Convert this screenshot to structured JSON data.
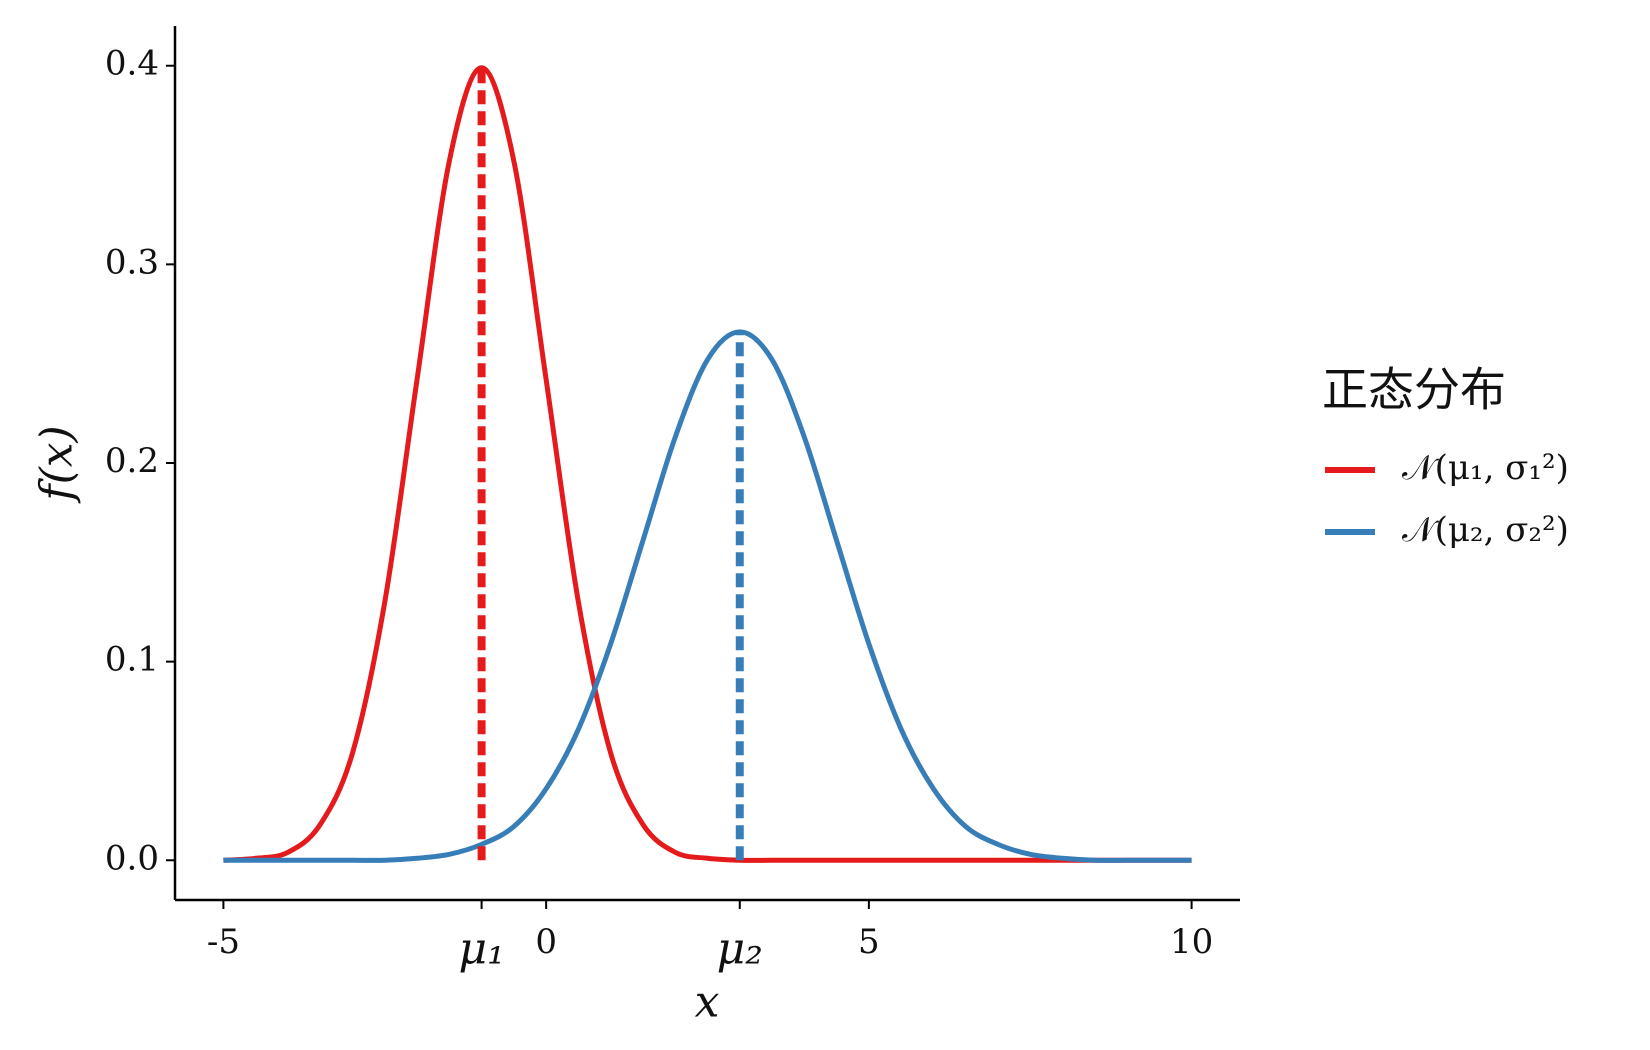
{
  "chart_data": {
    "type": "line",
    "x": [
      -5,
      -4.5,
      -4,
      -3.5,
      -3,
      -2.5,
      -2,
      -1.5,
      -1,
      -0.5,
      0,
      0.5,
      1,
      1.5,
      2,
      2.5,
      3,
      3.5,
      4,
      4.5,
      5,
      5.5,
      6,
      6.5,
      7,
      7.5,
      8,
      8.5,
      9,
      9.5,
      10
    ],
    "series": [
      {
        "name": "𝒩(μ₁, σ₁²)",
        "color": "#e41a1c",
        "values": [
          0,
          0.001,
          0.004,
          0.018,
          0.054,
          0.13,
          0.242,
          0.352,
          0.399,
          0.352,
          0.242,
          0.13,
          0.054,
          0.018,
          0.004,
          0.001,
          0,
          0,
          0,
          0,
          0,
          0,
          0,
          0,
          0,
          0,
          0,
          0,
          0,
          0,
          0
        ]
      },
      {
        "name": "𝒩(μ₂, σ₂²)",
        "color": "#377eb8",
        "values": [
          0,
          0,
          0,
          0,
          0,
          0,
          0.001,
          0.003,
          0.008,
          0.017,
          0.036,
          0.066,
          0.109,
          0.161,
          0.213,
          0.252,
          0.266,
          0.252,
          0.213,
          0.161,
          0.109,
          0.066,
          0.036,
          0.017,
          0.008,
          0.003,
          0.001,
          0,
          0,
          0,
          0
        ]
      }
    ],
    "vlines": [
      {
        "x": -1,
        "y": 0.399,
        "color": "#e41a1c"
      },
      {
        "x": 3,
        "y": 0.266,
        "color": "#377eb8"
      }
    ],
    "xlabel": "x",
    "ylabel": "f(x)",
    "legend_title": "正态分布",
    "legend": "right",
    "xlim": [
      -5.75,
      10.75
    ],
    "ylim": [
      -0.02,
      0.42
    ],
    "xticks": [
      -5,
      {
        "value": -1,
        "label": "μ₁"
      },
      0,
      {
        "value": 3,
        "label": "μ₂"
      },
      5,
      10
    ],
    "yticks": [
      {
        "value": 0,
        "label": "0.0"
      },
      {
        "value": 0.1,
        "label": "0.1"
      },
      {
        "value": 0.2,
        "label": "0.2"
      },
      {
        "value": 0.3,
        "label": "0.3"
      },
      {
        "value": 0.4,
        "label": "0.4"
      }
    ]
  }
}
